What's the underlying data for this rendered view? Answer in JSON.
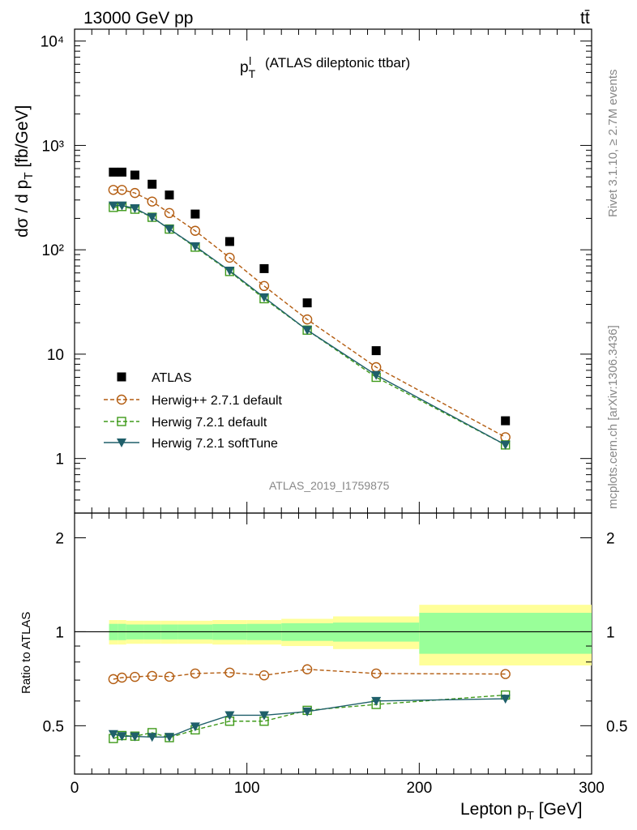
{
  "header": {
    "energy_label": "13000 GeV pp",
    "process_label": "tt̄"
  },
  "plot_title": {
    "main": "p",
    "sub": "T",
    "sup": "l",
    "rest": "(ATLAS dileptonic ttbar)"
  },
  "side_labels": {
    "rivet": "Rivet 3.1.10, ≥ 2.7M events",
    "mcplots": "mcplots.cern.ch [arXiv:1306.3436]"
  },
  "analysis_id": "ATLAS_2019_I1759875",
  "axes": {
    "ylabel_main": "dσ / d p_T [fb/GeV]",
    "ylabel_ratio": "Ratio to ATLAS",
    "xlabel": "Lepton p_T [GeV]",
    "x_ticks": [
      "0",
      "100",
      "200",
      "300"
    ],
    "y_ticks_main": [
      "1",
      "10",
      "10²",
      "10³",
      "10⁴"
    ],
    "y_ticks_ratio": [
      "0.5",
      "1",
      "2"
    ]
  },
  "legend": [
    {
      "label": "ATLAS"
    },
    {
      "label": "Herwig++ 2.7.1 default"
    },
    {
      "label": "Herwig 7.2.1 default"
    },
    {
      "label": "Herwig 7.2.1 softTune"
    }
  ],
  "colors": {
    "data": "#000000",
    "herwigpp": "#b35c10",
    "herwig7_default": "#3f9a1a",
    "herwig7_softtune": "#1f5f6a",
    "band_inner": "#99ff99",
    "band_outer": "#ffff99",
    "meta_text": "#888888"
  },
  "chart_data": {
    "type": "scatter",
    "x_scale": "linear",
    "y_scale": "log",
    "xlim": [
      0,
      300
    ],
    "ylim": [
      0.3,
      13000
    ],
    "ratio_ylim": [
      0.35,
      2.4
    ],
    "ratio_scale": "log",
    "bins": [
      {
        "lo": 20,
        "hi": 25,
        "x": 22.5
      },
      {
        "lo": 25,
        "hi": 30,
        "x": 27.5
      },
      {
        "lo": 30,
        "hi": 40,
        "x": 35
      },
      {
        "lo": 40,
        "hi": 50,
        "x": 45
      },
      {
        "lo": 50,
        "hi": 60,
        "x": 55
      },
      {
        "lo": 60,
        "hi": 80,
        "x": 70
      },
      {
        "lo": 80,
        "hi": 100,
        "x": 90
      },
      {
        "lo": 100,
        "hi": 120,
        "x": 110
      },
      {
        "lo": 120,
        "hi": 150,
        "x": 135
      },
      {
        "lo": 150,
        "hi": 200,
        "x": 175
      },
      {
        "lo": 200,
        "hi": 300,
        "x": 250
      }
    ],
    "data_values": [
      555,
      555,
      520,
      425,
      335,
      220,
      120,
      66,
      31,
      10.8,
      2.3
    ],
    "band_inner": [
      0.06,
      0.06,
      0.055,
      0.055,
      0.055,
      0.055,
      0.058,
      0.06,
      0.065,
      0.07,
      0.15
    ],
    "band_outer": [
      0.09,
      0.09,
      0.085,
      0.085,
      0.085,
      0.085,
      0.09,
      0.09,
      0.1,
      0.12,
      0.22
    ],
    "series": [
      {
        "name": "Herwig++ 2.7.1 default",
        "values": [
          375,
          375,
          350,
          290,
          225,
          152,
          84,
          45,
          21.5,
          7.5,
          1.6
        ],
        "ratio": [
          0.705,
          0.713,
          0.717,
          0.722,
          0.718,
          0.735,
          0.74,
          0.725,
          0.758,
          0.735,
          0.732
        ]
      },
      {
        "name": "Herwig 7.2.1 default",
        "values": [
          255,
          260,
          245,
          205,
          158,
          106,
          62,
          34,
          17,
          6.0,
          1.35
        ],
        "ratio": [
          0.455,
          0.465,
          0.463,
          0.475,
          0.458,
          0.485,
          0.517,
          0.517,
          0.56,
          0.585,
          0.627
        ]
      },
      {
        "name": "Herwig 7.2.1 softTune",
        "values": [
          265,
          265,
          250,
          205,
          158,
          108,
          63,
          35,
          17,
          6.3,
          1.35
        ],
        "ratio": [
          0.47,
          0.463,
          0.462,
          0.46,
          0.46,
          0.497,
          0.54,
          0.54,
          0.555,
          0.6,
          0.61
        ]
      }
    ]
  }
}
